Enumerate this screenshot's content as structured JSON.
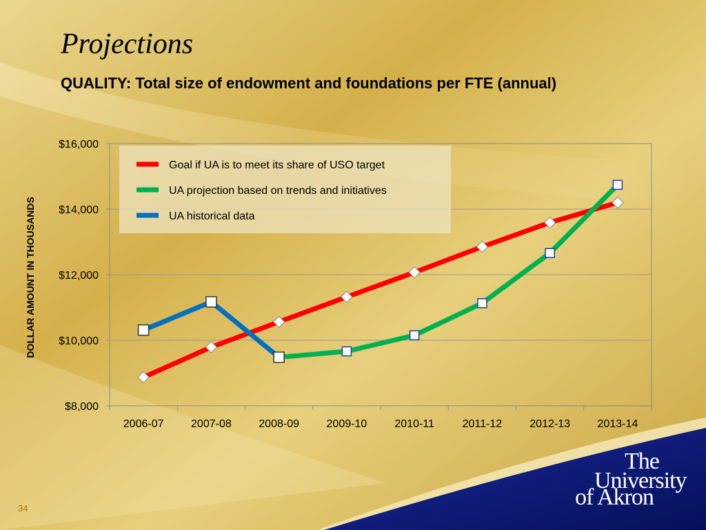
{
  "slide": {
    "title": "Projections",
    "subtitle": "QUALITY: Total size of endowment and foundations per FTE (annual)",
    "page_number": "34",
    "logo_lines": [
      "The",
      "University",
      "of Akron"
    ]
  },
  "colors": {
    "goal": "#ff0000",
    "projection": "#00b050",
    "historical": "#0070c0",
    "brand_navy": "#0a1a7a",
    "gold": "#d8b44a"
  },
  "chart_data": {
    "type": "line",
    "title": "",
    "xlabel": "",
    "ylabel": "DOLLAR AMOUNT IN THOUSANDS",
    "categories": [
      "2006-07",
      "2007-08",
      "2008-09",
      "2009-10",
      "2010-11",
      "2011-12",
      "2012-13",
      "2013-14"
    ],
    "ylim": [
      8000,
      16000
    ],
    "yticks": [
      8000,
      10000,
      12000,
      14000,
      16000
    ],
    "ytick_labels": [
      "$8,000",
      "$10,000",
      "$12,000",
      "$14,000",
      "$16,000"
    ],
    "grid": true,
    "legend_position": "top-left",
    "series": [
      {
        "name": "Goal if UA is to meet its share of USO target",
        "color": "#ff0000",
        "marker": "diamond",
        "values": [
          8870,
          9790,
          10560,
          11320,
          12070,
          12850,
          13590,
          14200
        ]
      },
      {
        "name": "UA projection based on trends and initiatives",
        "color": "#00b050",
        "marker": "square",
        "values": [
          null,
          null,
          9480,
          9660,
          10150,
          11130,
          12660,
          14740
        ]
      },
      {
        "name": "UA historical data",
        "color": "#0070c0",
        "marker": "square",
        "values": [
          10310,
          11170,
          9480,
          null,
          null,
          null,
          null,
          null
        ]
      }
    ]
  }
}
